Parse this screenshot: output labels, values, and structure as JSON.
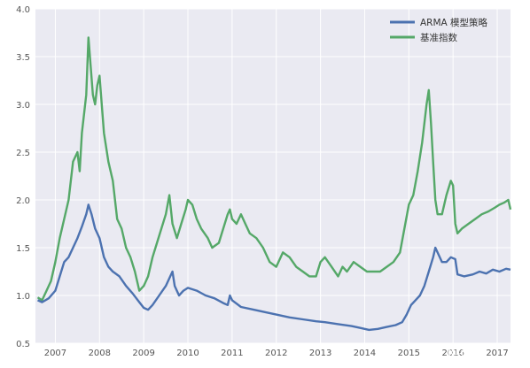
{
  "watermark": "知乎 @石川",
  "chart_data": {
    "type": "line",
    "title": "",
    "xlabel": "",
    "ylabel": "",
    "xlim": [
      2006.55,
      2017.3
    ],
    "ylim": [
      0.5,
      4.0
    ],
    "x_ticks": [
      2007,
      2008,
      2009,
      2010,
      2011,
      2012,
      2013,
      2014,
      2015,
      2016,
      2017
    ],
    "y_ticks": [
      0.5,
      1.0,
      1.5,
      2.0,
      2.5,
      3.0,
      3.5,
      4.0
    ],
    "grid": true,
    "legend_position": "top-right",
    "series": [
      {
        "name": "ARMA 模型策略",
        "color": "#4c72b0",
        "points": [
          [
            2006.6,
            0.95
          ],
          [
            2006.7,
            0.93
          ],
          [
            2006.85,
            0.97
          ],
          [
            2007.0,
            1.05
          ],
          [
            2007.1,
            1.2
          ],
          [
            2007.2,
            1.35
          ],
          [
            2007.3,
            1.4
          ],
          [
            2007.4,
            1.5
          ],
          [
            2007.5,
            1.6
          ],
          [
            2007.6,
            1.72
          ],
          [
            2007.7,
            1.85
          ],
          [
            2007.75,
            1.95
          ],
          [
            2007.82,
            1.85
          ],
          [
            2007.9,
            1.7
          ],
          [
            2008.0,
            1.6
          ],
          [
            2008.1,
            1.4
          ],
          [
            2008.2,
            1.3
          ],
          [
            2008.3,
            1.25
          ],
          [
            2008.45,
            1.2
          ],
          [
            2008.6,
            1.1
          ],
          [
            2008.75,
            1.02
          ],
          [
            2008.9,
            0.93
          ],
          [
            2009.0,
            0.87
          ],
          [
            2009.1,
            0.85
          ],
          [
            2009.2,
            0.9
          ],
          [
            2009.35,
            1.0
          ],
          [
            2009.5,
            1.1
          ],
          [
            2009.6,
            1.2
          ],
          [
            2009.65,
            1.25
          ],
          [
            2009.7,
            1.1
          ],
          [
            2009.8,
            1.0
          ],
          [
            2009.9,
            1.05
          ],
          [
            2010.0,
            1.08
          ],
          [
            2010.2,
            1.05
          ],
          [
            2010.4,
            1.0
          ],
          [
            2010.6,
            0.97
          ],
          [
            2010.8,
            0.92
          ],
          [
            2010.9,
            0.9
          ],
          [
            2010.95,
            1.0
          ],
          [
            2011.0,
            0.95
          ],
          [
            2011.2,
            0.88
          ],
          [
            2011.5,
            0.85
          ],
          [
            2011.8,
            0.82
          ],
          [
            2012.0,
            0.8
          ],
          [
            2012.3,
            0.77
          ],
          [
            2012.6,
            0.75
          ],
          [
            2012.9,
            0.73
          ],
          [
            2013.1,
            0.72
          ],
          [
            2013.4,
            0.7
          ],
          [
            2013.7,
            0.68
          ],
          [
            2013.9,
            0.66
          ],
          [
            2014.1,
            0.64
          ],
          [
            2014.3,
            0.65
          ],
          [
            2014.5,
            0.67
          ],
          [
            2014.7,
            0.69
          ],
          [
            2014.85,
            0.72
          ],
          [
            2014.95,
            0.8
          ],
          [
            2015.05,
            0.9
          ],
          [
            2015.15,
            0.95
          ],
          [
            2015.25,
            1.0
          ],
          [
            2015.35,
            1.1
          ],
          [
            2015.45,
            1.25
          ],
          [
            2015.55,
            1.4
          ],
          [
            2015.6,
            1.5
          ],
          [
            2015.65,
            1.45
          ],
          [
            2015.75,
            1.35
          ],
          [
            2015.85,
            1.35
          ],
          [
            2015.95,
            1.4
          ],
          [
            2016.05,
            1.38
          ],
          [
            2016.1,
            1.22
          ],
          [
            2016.25,
            1.2
          ],
          [
            2016.45,
            1.22
          ],
          [
            2016.6,
            1.25
          ],
          [
            2016.75,
            1.23
          ],
          [
            2016.9,
            1.27
          ],
          [
            2017.05,
            1.25
          ],
          [
            2017.2,
            1.28
          ],
          [
            2017.3,
            1.27
          ]
        ]
      },
      {
        "name": "基准指数",
        "color": "#55a868",
        "points": [
          [
            2006.6,
            0.98
          ],
          [
            2006.7,
            0.95
          ],
          [
            2006.8,
            1.05
          ],
          [
            2006.9,
            1.15
          ],
          [
            2007.0,
            1.35
          ],
          [
            2007.1,
            1.6
          ],
          [
            2007.2,
            1.8
          ],
          [
            2007.3,
            2.0
          ],
          [
            2007.4,
            2.4
          ],
          [
            2007.5,
            2.5
          ],
          [
            2007.55,
            2.3
          ],
          [
            2007.6,
            2.7
          ],
          [
            2007.7,
            3.1
          ],
          [
            2007.75,
            3.7
          ],
          [
            2007.8,
            3.4
          ],
          [
            2007.85,
            3.1
          ],
          [
            2007.9,
            3.0
          ],
          [
            2007.95,
            3.2
          ],
          [
            2008.0,
            3.3
          ],
          [
            2008.05,
            3.0
          ],
          [
            2008.1,
            2.7
          ],
          [
            2008.2,
            2.4
          ],
          [
            2008.3,
            2.2
          ],
          [
            2008.4,
            1.8
          ],
          [
            2008.5,
            1.7
          ],
          [
            2008.6,
            1.5
          ],
          [
            2008.7,
            1.4
          ],
          [
            2008.8,
            1.25
          ],
          [
            2008.9,
            1.05
          ],
          [
            2009.0,
            1.1
          ],
          [
            2009.1,
            1.2
          ],
          [
            2009.2,
            1.4
          ],
          [
            2009.3,
            1.55
          ],
          [
            2009.4,
            1.7
          ],
          [
            2009.5,
            1.85
          ],
          [
            2009.58,
            2.05
          ],
          [
            2009.65,
            1.75
          ],
          [
            2009.75,
            1.6
          ],
          [
            2009.85,
            1.75
          ],
          [
            2009.95,
            1.9
          ],
          [
            2010.0,
            2.0
          ],
          [
            2010.1,
            1.95
          ],
          [
            2010.2,
            1.8
          ],
          [
            2010.3,
            1.7
          ],
          [
            2010.45,
            1.6
          ],
          [
            2010.55,
            1.5
          ],
          [
            2010.7,
            1.55
          ],
          [
            2010.8,
            1.7
          ],
          [
            2010.9,
            1.85
          ],
          [
            2010.95,
            1.9
          ],
          [
            2011.0,
            1.8
          ],
          [
            2011.1,
            1.75
          ],
          [
            2011.2,
            1.85
          ],
          [
            2011.3,
            1.75
          ],
          [
            2011.4,
            1.65
          ],
          [
            2011.55,
            1.6
          ],
          [
            2011.7,
            1.5
          ],
          [
            2011.85,
            1.35
          ],
          [
            2012.0,
            1.3
          ],
          [
            2012.15,
            1.45
          ],
          [
            2012.3,
            1.4
          ],
          [
            2012.45,
            1.3
          ],
          [
            2012.6,
            1.25
          ],
          [
            2012.75,
            1.2
          ],
          [
            2012.9,
            1.2
          ],
          [
            2013.0,
            1.35
          ],
          [
            2013.1,
            1.4
          ],
          [
            2013.25,
            1.3
          ],
          [
            2013.4,
            1.2
          ],
          [
            2013.5,
            1.3
          ],
          [
            2013.6,
            1.25
          ],
          [
            2013.75,
            1.35
          ],
          [
            2013.9,
            1.3
          ],
          [
            2014.05,
            1.25
          ],
          [
            2014.2,
            1.25
          ],
          [
            2014.35,
            1.25
          ],
          [
            2014.5,
            1.3
          ],
          [
            2014.65,
            1.35
          ],
          [
            2014.8,
            1.45
          ],
          [
            2014.9,
            1.7
          ],
          [
            2015.0,
            1.95
          ],
          [
            2015.1,
            2.05
          ],
          [
            2015.2,
            2.3
          ],
          [
            2015.3,
            2.6
          ],
          [
            2015.4,
            3.0
          ],
          [
            2015.45,
            3.15
          ],
          [
            2015.5,
            2.8
          ],
          [
            2015.55,
            2.4
          ],
          [
            2015.6,
            2.0
          ],
          [
            2015.65,
            1.85
          ],
          [
            2015.75,
            1.85
          ],
          [
            2015.85,
            2.05
          ],
          [
            2015.95,
            2.2
          ],
          [
            2016.0,
            2.15
          ],
          [
            2016.05,
            1.75
          ],
          [
            2016.1,
            1.65
          ],
          [
            2016.2,
            1.7
          ],
          [
            2016.35,
            1.75
          ],
          [
            2016.5,
            1.8
          ],
          [
            2016.65,
            1.85
          ],
          [
            2016.8,
            1.88
          ],
          [
            2016.95,
            1.92
          ],
          [
            2017.05,
            1.95
          ],
          [
            2017.15,
            1.97
          ],
          [
            2017.25,
            2.0
          ],
          [
            2017.3,
            1.9
          ]
        ]
      }
    ]
  }
}
